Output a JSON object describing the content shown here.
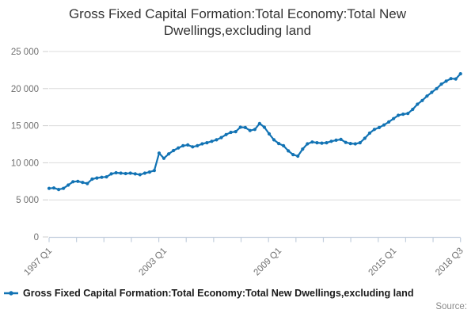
{
  "title": {
    "line1": "Gross Fixed Capital Formation:Total Economy:Total New",
    "line2": "Dwellings,excluding land"
  },
  "source": {
    "label": "Source:"
  },
  "colors": {
    "series_blue": "#1273b4",
    "gridline": "#dcdcdc",
    "axis": "#c2cedd",
    "y_tick_dash": "#cfcfcf",
    "tick_label": "#6f6f6f",
    "title_text": "#333333",
    "legend_text": "#1a1a1a",
    "source_text": "#8a8a8a"
  },
  "chart_data": {
    "type": "line",
    "title": "Gross Fixed Capital Formation:Total Economy:Total New Dwellings,excluding land",
    "frequency": "quarterly",
    "x_start": "1997 Q1",
    "x_end": "2018 Q3",
    "x_tick_labels": [
      "1997 Q1",
      "2003 Q1",
      "2009 Q1",
      "2015 Q1",
      "2018 Q3"
    ],
    "x_tick_indices": [
      0,
      24,
      48,
      72,
      86
    ],
    "x_minor_tick_count": 16,
    "y_ticks": [
      0,
      5000,
      10000,
      15000,
      20000,
      25000
    ],
    "y_tick_labels": [
      "0",
      "5 000",
      "10 000",
      "15 000",
      "20 000",
      "25 000"
    ],
    "ylim": [
      0,
      25000
    ],
    "grid": "horizontal",
    "legend_position": "bottom-left",
    "series": [
      {
        "name": "Gross Fixed Capital Formation:Total Economy:Total New Dwellings,excluding land",
        "color": "#1273b4",
        "values": [
          6550,
          6600,
          6400,
          6550,
          7000,
          7450,
          7500,
          7350,
          7200,
          7800,
          7950,
          8050,
          8100,
          8500,
          8650,
          8600,
          8550,
          8600,
          8500,
          8400,
          8600,
          8750,
          8950,
          11300,
          10600,
          11200,
          11650,
          12000,
          12300,
          12400,
          12150,
          12300,
          12550,
          12700,
          12900,
          13100,
          13400,
          13800,
          14100,
          14200,
          14800,
          14750,
          14350,
          14500,
          15300,
          14800,
          13900,
          13100,
          12600,
          12300,
          11600,
          11100,
          10900,
          11850,
          12550,
          12800,
          12700,
          12650,
          12700,
          12900,
          13050,
          13150,
          12750,
          12600,
          12550,
          12700,
          13300,
          14000,
          14500,
          14750,
          15100,
          15500,
          15950,
          16400,
          16550,
          16650,
          17200,
          17900,
          18400,
          19000,
          19500,
          20000,
          20600,
          21000,
          21350,
          21300,
          22000
        ]
      }
    ]
  }
}
